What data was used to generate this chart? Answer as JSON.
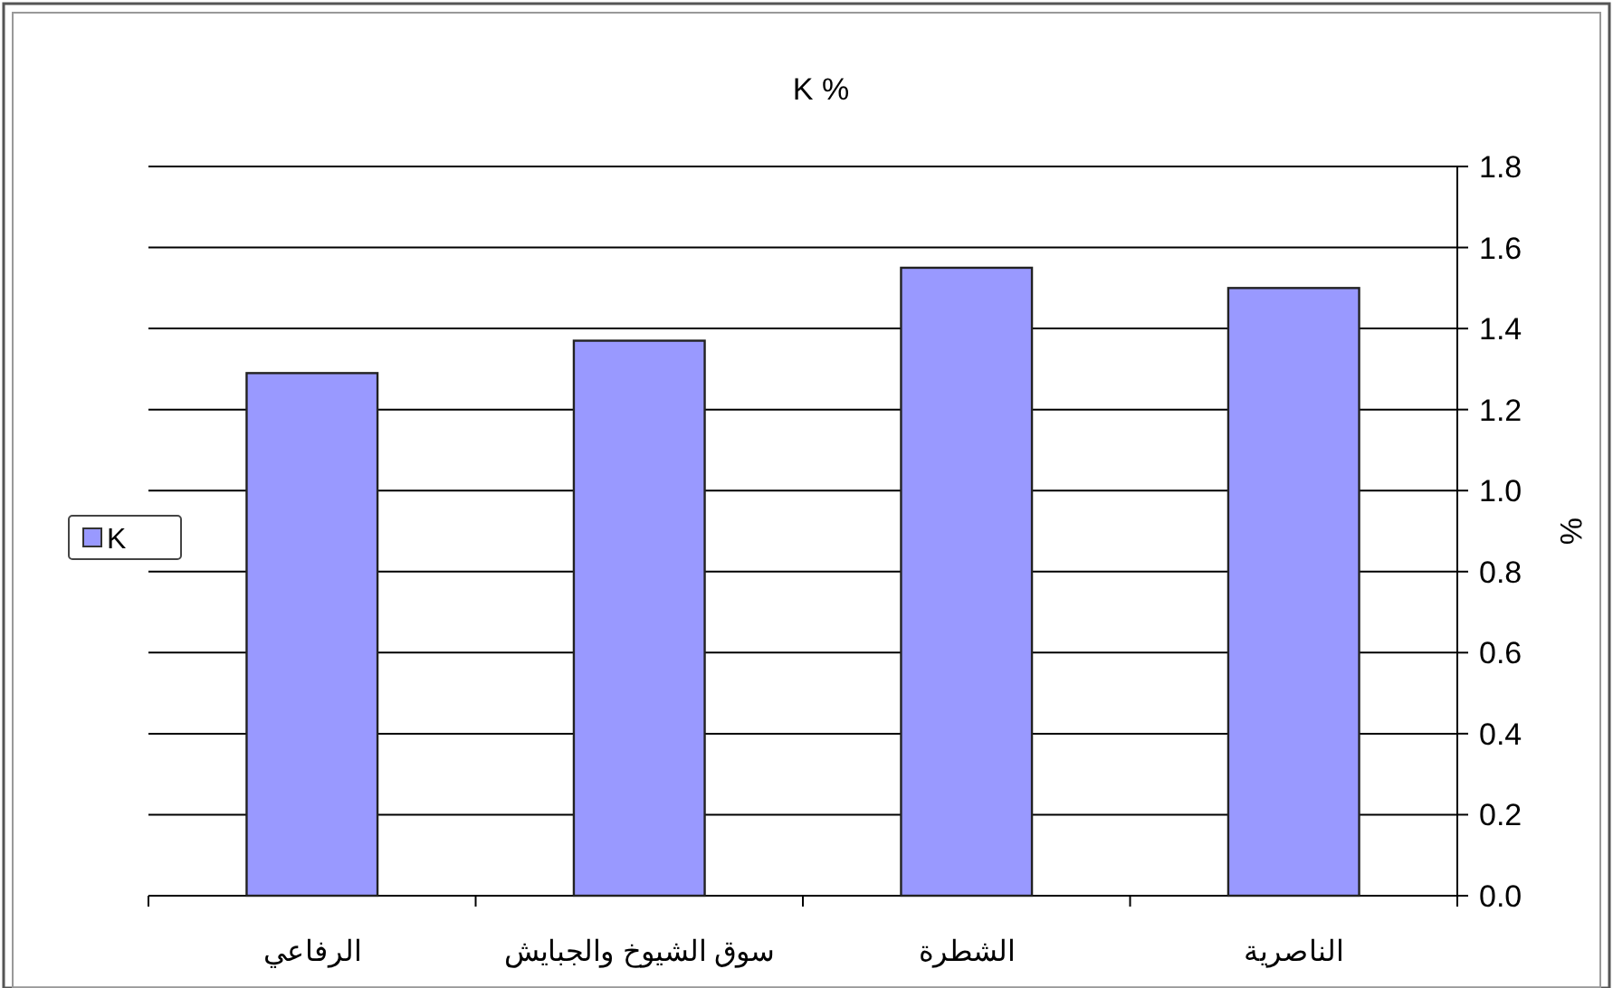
{
  "chart_data": {
    "type": "bar",
    "title": "K %",
    "ylabel": "%",
    "categories": [
      "الرفاعي",
      "سوق الشيوخ والجبايش",
      "الشطرة",
      "الناصرية"
    ],
    "series": [
      {
        "name": "K",
        "color": "#9999ff",
        "values": [
          1.29,
          1.37,
          1.55,
          1.5
        ]
      }
    ],
    "ylim": [
      0,
      1.8
    ],
    "yticks": [
      {
        "value": 0,
        "label": "0.0"
      },
      {
        "value": 0.2,
        "label": "0.2"
      },
      {
        "value": 0.4,
        "label": "0.4"
      },
      {
        "value": 0.6,
        "label": "0.6"
      },
      {
        "value": 0.8,
        "label": "0.8"
      },
      {
        "value": 1,
        "label": "1.0"
      },
      {
        "value": 1.2,
        "label": "1.2"
      },
      {
        "value": 1.4,
        "label": "1.4"
      },
      {
        "value": 1.6,
        "label": "1.6"
      },
      {
        "value": 1.8,
        "label": "1.8"
      }
    ],
    "grid": "y",
    "legend": "left"
  }
}
